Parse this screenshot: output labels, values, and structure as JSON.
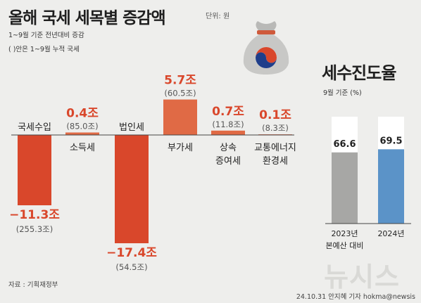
{
  "header": {
    "title": "올해 국세 세목별 증감액",
    "unit": "단위: 원",
    "note1": "1~9월 기준 전년대비 증감",
    "note2": "( )안은 1~9월 누적 국세"
  },
  "footer": {
    "source": "자료 : 기획재정부",
    "credit": "24.10.31 안지혜 기자 hokma@newsis",
    "watermark": "뉴시스"
  },
  "side": {
    "title": "세수진도율",
    "subtitle": "9월 기준 (%)"
  },
  "colors": {
    "negative": "#d9472b",
    "positive": "#e06a45",
    "text_red": "#d9472b",
    "bar_2023": "#a7a7a5",
    "bar_2024": "#5b93c8"
  },
  "chart_data": [
    {
      "type": "bar",
      "title": "올해 국세 세목별 증감액",
      "categories": [
        "국세수입",
        "소득세",
        "법인세",
        "부가세",
        "상속 증여세",
        "교통에너지 환경세"
      ],
      "category_lines": [
        [
          "국세수입"
        ],
        [
          "소득세"
        ],
        [
          "법인세"
        ],
        [
          "부가세"
        ],
        [
          "상속",
          "증여세"
        ],
        [
          "교통에너지",
          "환경세"
        ]
      ],
      "values": [
        -11.3,
        0.4,
        -17.4,
        5.7,
        0.7,
        0.1
      ],
      "value_labels": [
        "−11.3조",
        "0.4조",
        "−17.4조",
        "5.7조",
        "0.7조",
        "0.1조"
      ],
      "cumulative_labels": [
        "(255.3조)",
        "(85.0조)",
        "(54.5조)",
        "(60.5조)",
        "(11.8조)",
        "(8.3조)"
      ],
      "unit": "조원"
    },
    {
      "type": "bar",
      "title": "세수진도율",
      "categories": [
        "2023년 본예산 대비",
        "2024년"
      ],
      "category_lines": [
        [
          "2023년",
          "본예산 대비"
        ],
        [
          "2024년"
        ]
      ],
      "values": [
        66.6,
        69.5
      ],
      "value_labels": [
        "66.6",
        "69.5"
      ],
      "ylim": [
        0,
        100
      ]
    }
  ]
}
